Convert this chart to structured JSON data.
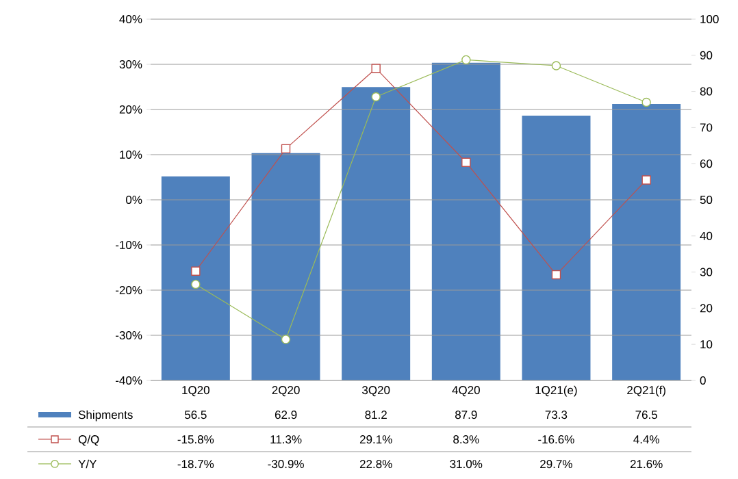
{
  "chart_data": {
    "type": "bar",
    "categories": [
      "1Q20",
      "2Q20",
      "3Q20",
      "4Q20",
      "1Q21(e)",
      "2Q21(f)"
    ],
    "series": [
      {
        "name": "Shipments",
        "axis": "y2",
        "color": "#4f81bd",
        "values": [
          56.5,
          62.9,
          81.2,
          87.9,
          73.3,
          76.5
        ],
        "value_labels": [
          "56.5",
          "62.9",
          "81.2",
          "87.9",
          "73.3",
          "76.5"
        ]
      },
      {
        "name": "Q/Q",
        "type": "line",
        "axis": "y",
        "color": "#c0504d",
        "marker": "square",
        "values": [
          -15.8,
          11.3,
          29.1,
          8.3,
          -16.6,
          4.4
        ],
        "value_labels": [
          "-15.8%",
          "11.3%",
          "29.1%",
          "8.3%",
          "-16.6%",
          "4.4%"
        ]
      },
      {
        "name": "Y/Y",
        "type": "line",
        "axis": "y",
        "color": "#9bbb59",
        "marker": "circle",
        "values": [
          -18.7,
          -30.9,
          22.8,
          31.0,
          29.7,
          21.6
        ],
        "value_labels": [
          "-18.7%",
          "-30.9%",
          "22.8%",
          "31.0%",
          "29.7%",
          "21.6%"
        ]
      }
    ],
    "ylim": [
      -40,
      40
    ],
    "yticks": [
      {
        "value": -40,
        "label": "-40%"
      },
      {
        "value": -30,
        "label": "-30%"
      },
      {
        "value": -20,
        "label": "-20%"
      },
      {
        "value": -10,
        "label": "-10%"
      },
      {
        "value": 0,
        "label": "0%"
      },
      {
        "value": 10,
        "label": "10%"
      },
      {
        "value": 20,
        "label": "20%"
      },
      {
        "value": 30,
        "label": "30%"
      },
      {
        "value": 40,
        "label": "40%"
      }
    ],
    "y2lim": [
      0,
      100
    ],
    "y2ticks": [
      0,
      10,
      20,
      30,
      40,
      50,
      60,
      70,
      80,
      90,
      100
    ],
    "grid": "y",
    "legend": "bottom left"
  }
}
